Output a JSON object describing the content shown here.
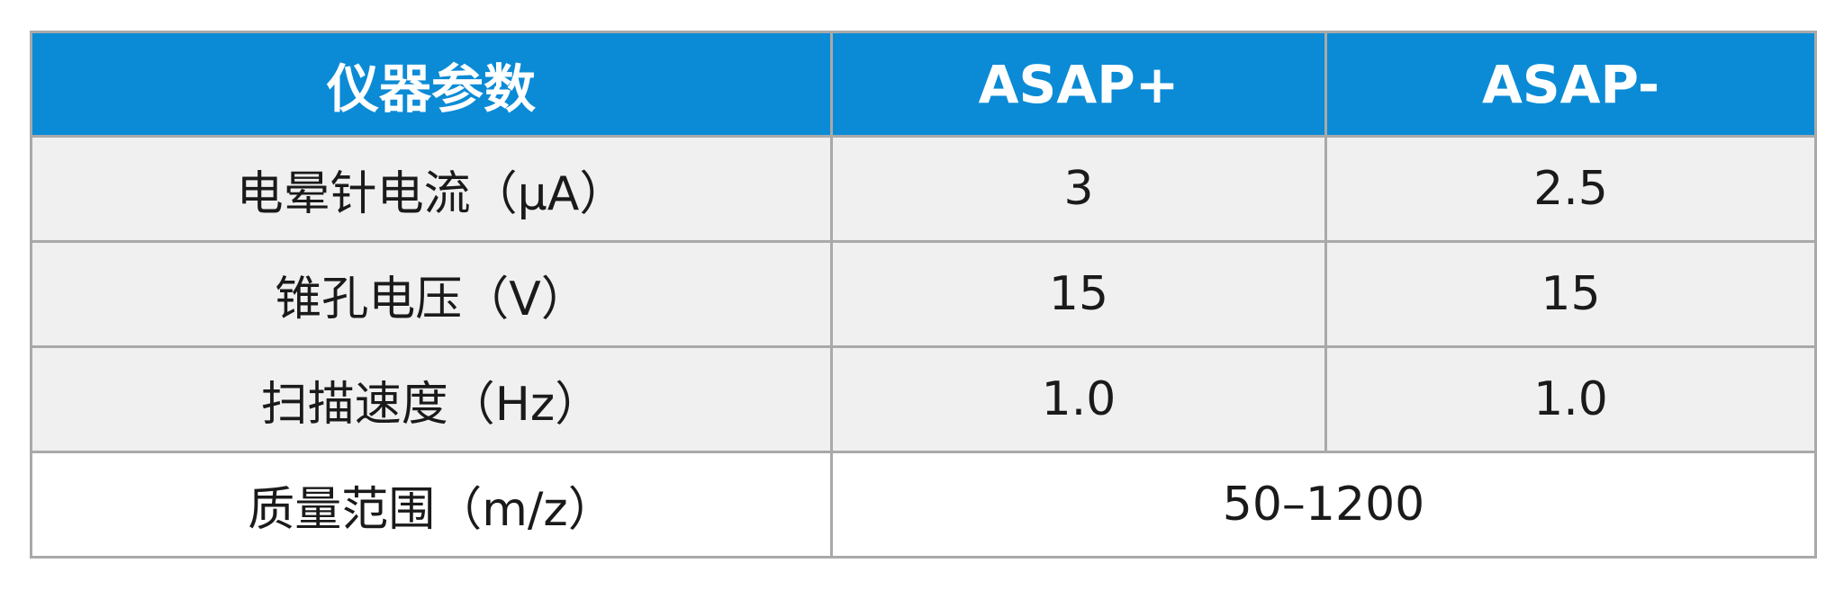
{
  "table": {
    "headers": {
      "param": "仪器参数",
      "asap_plus": "ASAP+",
      "asap_minus": "ASAP-"
    },
    "rows": [
      {
        "param": "电晕针电流（μA）",
        "asap_plus": "3",
        "asap_minus": "2.5"
      },
      {
        "param": "锥孔电压（V）",
        "asap_plus": "15",
        "asap_minus": "15"
      },
      {
        "param": "扫描速度（Hz）",
        "asap_plus": "1.0",
        "asap_minus": "1.0"
      },
      {
        "param": "质量范围（m/z）",
        "merged_value": "50–1200"
      }
    ]
  },
  "colors": {
    "header_bg": "#0b8bd6",
    "header_text": "#ffffff",
    "row_alt_bg": "#f0f0f0",
    "row_bg": "#ffffff",
    "border": "#a9a9a9",
    "text": "#1a1a1a"
  }
}
